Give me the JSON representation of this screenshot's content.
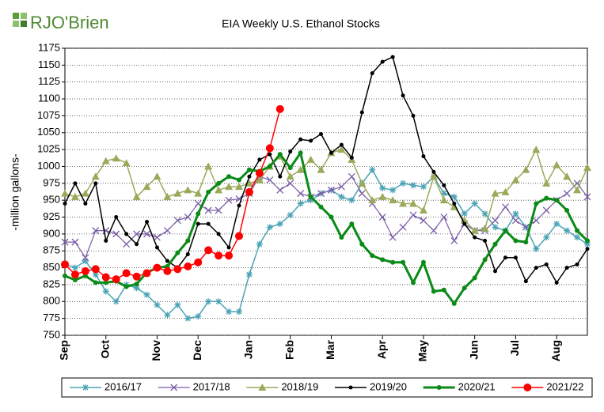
{
  "brand": "RJO'Brien",
  "chart_data": {
    "type": "line",
    "title": "EIA Weekly U.S. Ethanol Stocks",
    "y_label": "-million gallons-",
    "categories": [
      "Sep",
      null,
      null,
      null,
      "Oct",
      null,
      null,
      null,
      null,
      "Nov",
      null,
      null,
      null,
      "Dec",
      null,
      null,
      null,
      null,
      "Jan",
      null,
      null,
      null,
      "Feb",
      null,
      null,
      null,
      "Mar",
      null,
      null,
      null,
      null,
      "Apr",
      null,
      null,
      null,
      "May",
      null,
      null,
      null,
      null,
      "Jun",
      null,
      null,
      null,
      "Jul",
      null,
      null,
      null,
      "Aug",
      null,
      null,
      null
    ],
    "ylim": [
      750,
      1175
    ],
    "yticks": [
      750,
      775,
      800,
      825,
      850,
      875,
      900,
      925,
      950,
      975,
      1000,
      1025,
      1050,
      1075,
      1100,
      1125,
      1150,
      1175
    ],
    "grid": true,
    "series": [
      {
        "name": "2016/17",
        "color": "#4aa3b5",
        "marker": "star",
        "values": [
          855,
          850,
          860,
          840,
          815,
          800,
          825,
          820,
          810,
          795,
          780,
          795,
          775,
          778,
          800,
          800,
          785,
          785,
          840,
          885,
          910,
          915,
          928,
          945,
          950,
          960,
          965,
          955,
          950,
          975,
          995,
          968,
          965,
          975,
          972,
          970,
          985,
          960,
          955,
          930,
          945,
          930,
          910,
          905,
          930,
          910,
          878,
          895,
          915,
          905,
          895,
          885
        ]
      },
      {
        "name": "2017/18",
        "color": "#7b5ea7",
        "marker": "x",
        "values": [
          888,
          888,
          865,
          905,
          905,
          900,
          885,
          900,
          900,
          895,
          905,
          920,
          925,
          945,
          935,
          935,
          950,
          952,
          960,
          985,
          980,
          965,
          975,
          960,
          955,
          960,
          965,
          970,
          985,
          960,
          945,
          925,
          895,
          910,
          928,
          920,
          905,
          925,
          890,
          915,
          905,
          905,
          920,
          940,
          920,
          910,
          920,
          935,
          950,
          960,
          975,
          955
        ]
      },
      {
        "name": "2018/19",
        "color": "#9aaa5a",
        "marker": "triangle",
        "values": [
          960,
          955,
          960,
          985,
          1008,
          1012,
          1005,
          955,
          970,
          985,
          955,
          960,
          965,
          960,
          1000,
          965,
          970,
          970,
          975,
          980,
          1000,
          1015,
          985,
          995,
          1010,
          995,
          1020,
          1025,
          1010,
          975,
          950,
          955,
          950,
          945,
          945,
          935,
          985,
          950,
          940,
          920,
          905,
          908,
          960,
          962,
          980,
          995,
          1025,
          975,
          1002,
          985,
          965,
          998
        ]
      },
      {
        "name": "2019/20",
        "color": "#000000",
        "marker": "dot",
        "values": [
          945,
          975,
          945,
          975,
          890,
          925,
          900,
          885,
          918,
          880,
          860,
          850,
          870,
          915,
          915,
          900,
          880,
          942,
          985,
          1010,
          1018,
          985,
          1022,
          1040,
          1038,
          1048,
          1020,
          1032,
          1013,
          1080,
          1138,
          1155,
          1162,
          1105,
          1075,
          1015,
          992,
          972,
          945,
          915,
          895,
          890,
          845,
          865,
          865,
          830,
          850,
          855,
          828,
          850,
          855,
          878
        ]
      },
      {
        "name": "2020/21",
        "color": "#0a8a16",
        "marker": "circle",
        "values": [
          838,
          832,
          838,
          828,
          828,
          830,
          822,
          826,
          843,
          850,
          852,
          872,
          890,
          930,
          962,
          975,
          985,
          980,
          995,
          993,
          1000,
          1018,
          998,
          1020,
          955,
          940,
          925,
          895,
          915,
          885,
          868,
          862,
          858,
          858,
          828,
          858,
          815,
          817,
          797,
          820,
          835,
          862,
          885,
          905,
          890,
          888,
          945,
          953,
          950,
          935,
          905,
          890
        ]
      },
      {
        "name": "2021/22",
        "color": "#ff0000",
        "marker": "big",
        "values": [
          855,
          840,
          845,
          848,
          836,
          833,
          842,
          837,
          842,
          850,
          845,
          848,
          852,
          858,
          876,
          868,
          868,
          897,
          962,
          990,
          1027,
          1085,
          null,
          null,
          null,
          null,
          null,
          null,
          null,
          null,
          null,
          null,
          null,
          null,
          null,
          null,
          null,
          null,
          null,
          null,
          null,
          null,
          null,
          null,
          null,
          null,
          null,
          null,
          null,
          null,
          null,
          null
        ]
      }
    ]
  }
}
